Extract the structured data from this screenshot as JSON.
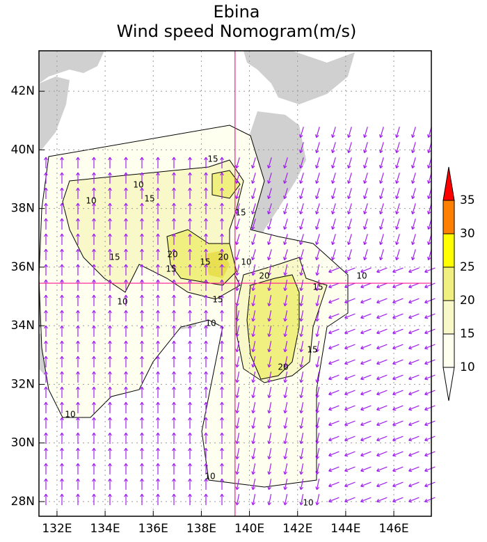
{
  "chart_data": {
    "type": "vector_map",
    "title": "Ebina",
    "subtitle": "Wind speed Nomogram(m/s)",
    "xlim": [
      131.25,
      147.56
    ],
    "ylim": [
      27.5,
      43.38
    ],
    "xticks": [
      {
        "value": 132,
        "label": "132E"
      },
      {
        "value": 134,
        "label": "134E"
      },
      {
        "value": 136,
        "label": "136E"
      },
      {
        "value": 138,
        "label": "138E"
      },
      {
        "value": 140,
        "label": "140E"
      },
      {
        "value": 142,
        "label": "142E"
      },
      {
        "value": 144,
        "label": "144E"
      },
      {
        "value": 146,
        "label": "146E"
      }
    ],
    "yticks": [
      {
        "value": 28,
        "label": "28N"
      },
      {
        "value": 30,
        "label": "30N"
      },
      {
        "value": 32,
        "label": "32N"
      },
      {
        "value": 34,
        "label": "34N"
      },
      {
        "value": 36,
        "label": "36N"
      },
      {
        "value": 38,
        "label": "38N"
      },
      {
        "value": 40,
        "label": "40N"
      },
      {
        "value": 42,
        "label": "42N"
      }
    ],
    "grid": true,
    "marker": {
      "lon": 139.4,
      "lat": 35.45,
      "color": "#ff1493"
    },
    "arrow_color": "#a020f0",
    "colorbar": {
      "levels": [
        10,
        15,
        20,
        25,
        30,
        35
      ],
      "colors": [
        "#ffffff",
        "#fffff0",
        "#f8f8c8",
        "#f0f080",
        "#ffff00",
        "#ff8000",
        "#ff0000"
      ]
    },
    "contour_labels": [
      15,
      10,
      10,
      15,
      15,
      20,
      15,
      15,
      20,
      10,
      15,
      20,
      10,
      15,
      10,
      15,
      10,
      15,
      20,
      10,
      10,
      10
    ]
  }
}
